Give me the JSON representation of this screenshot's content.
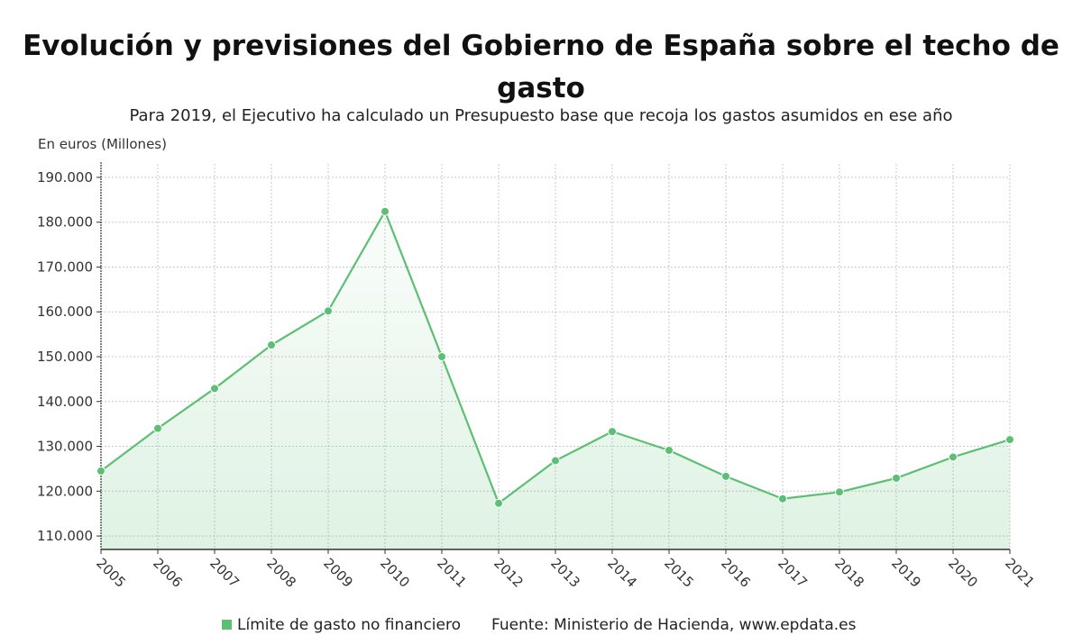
{
  "title": "Evolución y previsiones del Gobierno de España sobre el techo de gasto",
  "subtitle": "Para 2019, el Ejecutivo ha calculado un Presupuesto base que recoja los gastos asumidos en ese año",
  "source": "Fuente: Ministerio de Hacienda, www.epdata.es",
  "colors": {
    "line": "#5cbf73",
    "fill": "#5cbf73",
    "grid": "#c8c8c8"
  },
  "chart_data": {
    "type": "area",
    "ylabel": "En euros (Millones)",
    "x": [
      "2005",
      "2006",
      "2007",
      "2008",
      "2009",
      "2010",
      "2011",
      "2012",
      "2013",
      "2014",
      "2015",
      "2016",
      "2017",
      "2018",
      "2019",
      "2020",
      "2021"
    ],
    "series": [
      {
        "name": "Límite de gasto no financiero",
        "values": [
          124500,
          134000,
          142900,
          152600,
          160200,
          182400,
          150000,
          117300,
          126800,
          133300,
          129100,
          123300,
          118300,
          119800,
          122900,
          127600,
          131500
        ]
      }
    ],
    "ylim": [
      107000,
      193000
    ],
    "yticks": [
      110000,
      120000,
      130000,
      140000,
      150000,
      160000,
      170000,
      180000,
      190000
    ],
    "ytick_labels": [
      "110.000",
      "120.000",
      "130.000",
      "140.000",
      "150.000",
      "160.000",
      "170.000",
      "180.000",
      "190.000"
    ],
    "grid": true,
    "legend_position": "bottom-left"
  }
}
